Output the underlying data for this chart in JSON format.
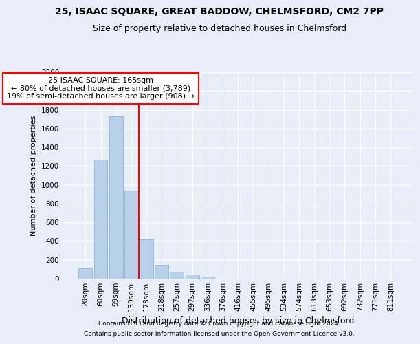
{
  "title1": "25, ISAAC SQUARE, GREAT BADDOW, CHELMSFORD, CM2 7PP",
  "title2": "Size of property relative to detached houses in Chelmsford",
  "xlabel": "Distribution of detached houses by size in Chelmsford",
  "ylabel": "Number of detached properties",
  "categories": [
    "20sqm",
    "60sqm",
    "99sqm",
    "139sqm",
    "178sqm",
    "218sqm",
    "257sqm",
    "297sqm",
    "336sqm",
    "376sqm",
    "416sqm",
    "455sqm",
    "495sqm",
    "534sqm",
    "574sqm",
    "613sqm",
    "653sqm",
    "692sqm",
    "732sqm",
    "771sqm",
    "811sqm"
  ],
  "values": [
    110,
    1270,
    1730,
    940,
    415,
    150,
    75,
    45,
    25,
    0,
    0,
    0,
    0,
    0,
    0,
    0,
    0,
    0,
    0,
    0,
    0
  ],
  "bar_color": "#b8d0ea",
  "bar_edge_color": "#7aaed4",
  "background_color": "#e8eef8",
  "grid_color": "#ffffff",
  "vline_color": "red",
  "vline_position": 3.5,
  "annotation_text": "25 ISAAC SQUARE: 165sqm\n← 80% of detached houses are smaller (3,789)\n19% of semi-detached houses are larger (908) →",
  "annotation_box_color": "white",
  "annotation_box_edgecolor": "red",
  "ylim": [
    0,
    2200
  ],
  "yticks": [
    0,
    200,
    400,
    600,
    800,
    1000,
    1200,
    1400,
    1600,
    1800,
    2000,
    2200
  ],
  "footer1": "Contains HM Land Registry data © Crown copyright and database right 2024.",
  "footer2": "Contains public sector information licensed under the Open Government Licence v3.0.",
  "title1_fontsize": 10,
  "title2_fontsize": 9,
  "xlabel_fontsize": 9,
  "ylabel_fontsize": 8,
  "tick_fontsize": 7.5,
  "annotation_fontsize": 8,
  "footer_fontsize": 6.5
}
